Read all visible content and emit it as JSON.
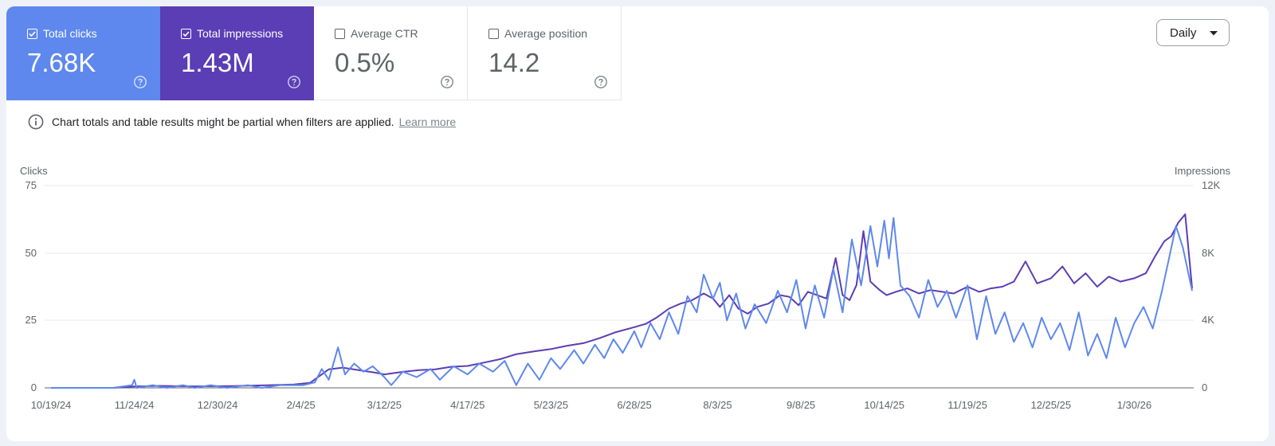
{
  "metrics": [
    {
      "label": "Total clicks",
      "value": "7.68K",
      "checked": true,
      "color": "#5e88ee"
    },
    {
      "label": "Total impressions",
      "value": "1.43M",
      "checked": true,
      "color": "#5b3db5"
    },
    {
      "label": "Average CTR",
      "value": "0.5%",
      "checked": false
    },
    {
      "label": "Average position",
      "value": "14.2",
      "checked": false
    }
  ],
  "granularity": {
    "label": "Daily",
    "icon": "caret-down-icon"
  },
  "notice": {
    "icon": "info-icon",
    "text": "Chart totals and table results might be partial when filters are applied.",
    "link": "Learn more"
  },
  "chart_data": {
    "type": "line",
    "ylabel_left": "Clicks",
    "ylabel_right": "Impressions",
    "yticks_left": [
      "0",
      "25",
      "50",
      "75"
    ],
    "yticks_right": [
      "0",
      "4K",
      "8K",
      "12K"
    ],
    "ylim_left": [
      0,
      75
    ],
    "ylim_right": [
      0,
      12000
    ],
    "x_ticks": [
      "10/19/24",
      "11/24/24",
      "12/30/24",
      "2/4/25",
      "3/12/25",
      "4/17/25",
      "5/23/25",
      "6/28/25",
      "8/3/25",
      "9/8/25",
      "10/14/25",
      "11/19/25",
      "12/25/25",
      "1/30/26"
    ],
    "x_start": "10/19/24",
    "x_end": "2/24/26",
    "grid": true,
    "legend": "none",
    "series": [
      {
        "name": "Total clicks",
        "axis": "left",
        "color": "#5e88ee",
        "points": [
          [
            "10/19/24",
            0
          ],
          [
            "11/15/24",
            0
          ],
          [
            "11/23/24",
            1
          ],
          [
            "11/24/24",
            3
          ],
          [
            "11/25/24",
            0
          ],
          [
            "12/2/24",
            1
          ],
          [
            "12/8/24",
            0
          ],
          [
            "12/15/24",
            1
          ],
          [
            "12/20/24",
            0
          ],
          [
            "12/27/24",
            1
          ],
          [
            "1/3/25",
            0
          ],
          [
            "1/12/25",
            1
          ],
          [
            "1/18/25",
            0
          ],
          [
            "1/26/25",
            1
          ],
          [
            "2/1/25",
            1
          ],
          [
            "2/5/25",
            1
          ],
          [
            "2/10/25",
            2
          ],
          [
            "2/13/25",
            7
          ],
          [
            "2/16/25",
            3
          ],
          [
            "2/20/25",
            15
          ],
          [
            "2/23/25",
            5
          ],
          [
            "2/27/25",
            9
          ],
          [
            "3/3/25",
            6
          ],
          [
            "3/7/25",
            8
          ],
          [
            "3/12/25",
            4
          ],
          [
            "3/15/25",
            1
          ],
          [
            "3/20/25",
            6
          ],
          [
            "3/26/25",
            4
          ],
          [
            "4/1/25",
            7
          ],
          [
            "4/5/25",
            3
          ],
          [
            "4/11/25",
            8
          ],
          [
            "4/17/25",
            5
          ],
          [
            "4/22/25",
            9
          ],
          [
            "4/28/25",
            6
          ],
          [
            "5/3/25",
            10
          ],
          [
            "5/8/25",
            1
          ],
          [
            "5/13/25",
            9
          ],
          [
            "5/18/25",
            3
          ],
          [
            "5/23/25",
            11
          ],
          [
            "5/27/25",
            7
          ],
          [
            "6/2/25",
            14
          ],
          [
            "6/6/25",
            9
          ],
          [
            "6/11/25",
            16
          ],
          [
            "6/15/25",
            11
          ],
          [
            "6/19/25",
            18
          ],
          [
            "6/23/25",
            13
          ],
          [
            "6/28/25",
            21
          ],
          [
            "7/1/25",
            15
          ],
          [
            "7/5/25",
            24
          ],
          [
            "7/9/25",
            18
          ],
          [
            "7/13/25",
            28
          ],
          [
            "7/17/25",
            20
          ],
          [
            "7/21/25",
            34
          ],
          [
            "7/25/25",
            28
          ],
          [
            "7/28/25",
            42
          ],
          [
            "8/1/25",
            33
          ],
          [
            "8/4/25",
            39
          ],
          [
            "8/7/25",
            25
          ],
          [
            "8/11/25",
            35
          ],
          [
            "8/15/25",
            22
          ],
          [
            "8/19/25",
            31
          ],
          [
            "8/24/25",
            24
          ],
          [
            "8/29/25",
            36
          ],
          [
            "9/2/25",
            28
          ],
          [
            "9/6/25",
            40
          ],
          [
            "9/10/25",
            22
          ],
          [
            "9/14/25",
            38
          ],
          [
            "9/18/25",
            26
          ],
          [
            "9/22/25",
            44
          ],
          [
            "9/26/25",
            28
          ],
          [
            "9/30/25",
            55
          ],
          [
            "10/4/25",
            38
          ],
          [
            "10/8/25",
            60
          ],
          [
            "10/11/25",
            45
          ],
          [
            "10/14/25",
            62
          ],
          [
            "10/16/25",
            48
          ],
          [
            "10/18/25",
            63
          ],
          [
            "10/21/25",
            38
          ],
          [
            "10/25/25",
            34
          ],
          [
            "10/29/25",
            26
          ],
          [
            "11/2/25",
            40
          ],
          [
            "11/6/25",
            30
          ],
          [
            "11/10/25",
            36
          ],
          [
            "11/14/25",
            26
          ],
          [
            "11/19/25",
            38
          ],
          [
            "11/23/25",
            18
          ],
          [
            "11/27/25",
            34
          ],
          [
            "12/1/25",
            20
          ],
          [
            "12/5/25",
            28
          ],
          [
            "12/9/25",
            17
          ],
          [
            "12/13/25",
            24
          ],
          [
            "12/17/25",
            15
          ],
          [
            "12/21/25",
            26
          ],
          [
            "12/25/25",
            18
          ],
          [
            "12/29/25",
            24
          ],
          [
            "1/2/26",
            14
          ],
          [
            "1/6/26",
            28
          ],
          [
            "1/10/26",
            12
          ],
          [
            "1/14/26",
            20
          ],
          [
            "1/18/26",
            11
          ],
          [
            "1/22/26",
            26
          ],
          [
            "1/26/26",
            15
          ],
          [
            "1/30/26",
            24
          ],
          [
            "2/3/26",
            30
          ],
          [
            "2/7/26",
            22
          ],
          [
            "2/11/26",
            36
          ],
          [
            "2/14/26",
            48
          ],
          [
            "2/17/26",
            60
          ],
          [
            "2/20/26",
            52
          ],
          [
            "2/24/26",
            36
          ]
        ]
      },
      {
        "name": "Total impressions",
        "axis": "right",
        "color": "#5b3db5",
        "points": [
          [
            "10/19/24",
            0
          ],
          [
            "11/15/24",
            0
          ],
          [
            "11/24/24",
            80
          ],
          [
            "12/5/24",
            120
          ],
          [
            "12/20/24",
            90
          ],
          [
            "1/5/25",
            110
          ],
          [
            "1/20/25",
            150
          ],
          [
            "2/1/25",
            200
          ],
          [
            "2/8/25",
            300
          ],
          [
            "2/12/25",
            700
          ],
          [
            "2/16/25",
            1100
          ],
          [
            "2/22/25",
            1200
          ],
          [
            "3/1/25",
            1050
          ],
          [
            "3/8/25",
            900
          ],
          [
            "3/12/25",
            800
          ],
          [
            "3/20/25",
            950
          ],
          [
            "3/27/25",
            1050
          ],
          [
            "4/3/25",
            1100
          ],
          [
            "4/10/25",
            1250
          ],
          [
            "4/17/25",
            1300
          ],
          [
            "4/24/25",
            1500
          ],
          [
            "5/1/25",
            1700
          ],
          [
            "5/8/25",
            2000
          ],
          [
            "5/15/25",
            2150
          ],
          [
            "5/23/25",
            2300
          ],
          [
            "5/30/25",
            2500
          ],
          [
            "6/6/25",
            2650
          ],
          [
            "6/13/25",
            2950
          ],
          [
            "6/20/25",
            3300
          ],
          [
            "6/28/25",
            3600
          ],
          [
            "7/3/25",
            3800
          ],
          [
            "7/8/25",
            4200
          ],
          [
            "7/13/25",
            4700
          ],
          [
            "7/18/25",
            5000
          ],
          [
            "7/23/25",
            5200
          ],
          [
            "7/28/25",
            5600
          ],
          [
            "8/1/25",
            5300
          ],
          [
            "8/4/25",
            4800
          ],
          [
            "8/8/25",
            5500
          ],
          [
            "8/12/25",
            4700
          ],
          [
            "8/16/25",
            4400
          ],
          [
            "8/20/25",
            4800
          ],
          [
            "8/25/25",
            5000
          ],
          [
            "8/30/25",
            5500
          ],
          [
            "9/3/25",
            5400
          ],
          [
            "9/7/25",
            4900
          ],
          [
            "9/11/25",
            5700
          ],
          [
            "9/15/25",
            5500
          ],
          [
            "9/19/25",
            5300
          ],
          [
            "9/23/25",
            7700
          ],
          [
            "9/26/25",
            5500
          ],
          [
            "9/29/25",
            5200
          ],
          [
            "10/2/25",
            6100
          ],
          [
            "10/5/25",
            9300
          ],
          [
            "10/8/25",
            6300
          ],
          [
            "10/12/25",
            5800
          ],
          [
            "10/15/25",
            5500
          ],
          [
            "10/19/25",
            5700
          ],
          [
            "10/24/25",
            5900
          ],
          [
            "10/29/25",
            5600
          ],
          [
            "11/3/25",
            5800
          ],
          [
            "11/8/25",
            5700
          ],
          [
            "11/13/25",
            5600
          ],
          [
            "11/19/25",
            6000
          ],
          [
            "11/24/25",
            5700
          ],
          [
            "11/29/25",
            5900
          ],
          [
            "12/4/25",
            6000
          ],
          [
            "12/9/25",
            6300
          ],
          [
            "12/14/25",
            7500
          ],
          [
            "12/19/25",
            6200
          ],
          [
            "12/25/25",
            6500
          ],
          [
            "12/30/25",
            7200
          ],
          [
            "1/4/26",
            6200
          ],
          [
            "1/9/26",
            6800
          ],
          [
            "1/14/26",
            6000
          ],
          [
            "1/19/26",
            6600
          ],
          [
            "1/24/26",
            6300
          ],
          [
            "1/30/26",
            6500
          ],
          [
            "2/4/26",
            6800
          ],
          [
            "2/8/26",
            7800
          ],
          [
            "2/12/26",
            8700
          ],
          [
            "2/15/26",
            9000
          ],
          [
            "2/18/26",
            9800
          ],
          [
            "2/21/26",
            10300
          ],
          [
            "2/24/26",
            5900
          ]
        ]
      }
    ]
  }
}
